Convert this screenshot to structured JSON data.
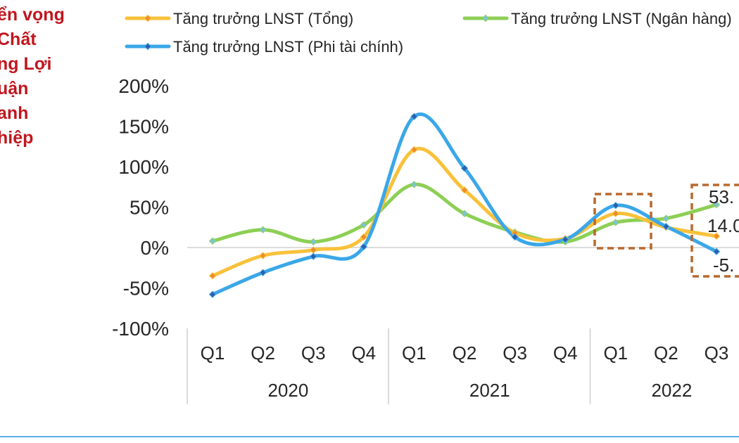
{
  "side_title": {
    "lines": [
      "ển vọng",
      "Chất",
      "ng Lợi",
      "uận",
      "anh",
      "hiệp"
    ],
    "color": "#c0171f"
  },
  "chart_data": {
    "type": "line",
    "categories": [
      "Q1",
      "Q2",
      "Q3",
      "Q4",
      "Q1",
      "Q2",
      "Q3",
      "Q4",
      "Q1",
      "Q2",
      "Q3"
    ],
    "groups": [
      {
        "label": "2020",
        "count": 4
      },
      {
        "label": "2021",
        "count": 4
      },
      {
        "label": "2022",
        "count": 3
      }
    ],
    "y_ticks": [
      "200%",
      "150%",
      "100%",
      "50%",
      "0%",
      "-50%",
      "-100%"
    ],
    "ylim": [
      -100,
      200
    ],
    "series": [
      {
        "name": "Tăng trưởng LNST (Tổng)",
        "color": "#f9c13a",
        "marker_color": "#ef8a2b",
        "values": [
          -35,
          -10,
          -3,
          13,
          121,
          71,
          18,
          11,
          42,
          25,
          14
        ]
      },
      {
        "name": "Tăng trưởng LNST (Ngân hàng)",
        "color": "#8dcf55",
        "marker_color": "#7ac4d8",
        "values": [
          8,
          22,
          7,
          28,
          78,
          42,
          19,
          7,
          31,
          36,
          53
        ]
      },
      {
        "name": "Tăng trưởng LNST (Phi tài chính)",
        "color": "#3aa7e8",
        "marker_color": "#2d5fae",
        "values": [
          -58,
          -31,
          -11,
          1,
          162,
          98,
          13,
          10,
          52,
          26,
          -5
        ]
      }
    ],
    "data_labels": [
      "53.",
      "14.0",
      "-5."
    ],
    "highlight_color": "#b8692e"
  }
}
